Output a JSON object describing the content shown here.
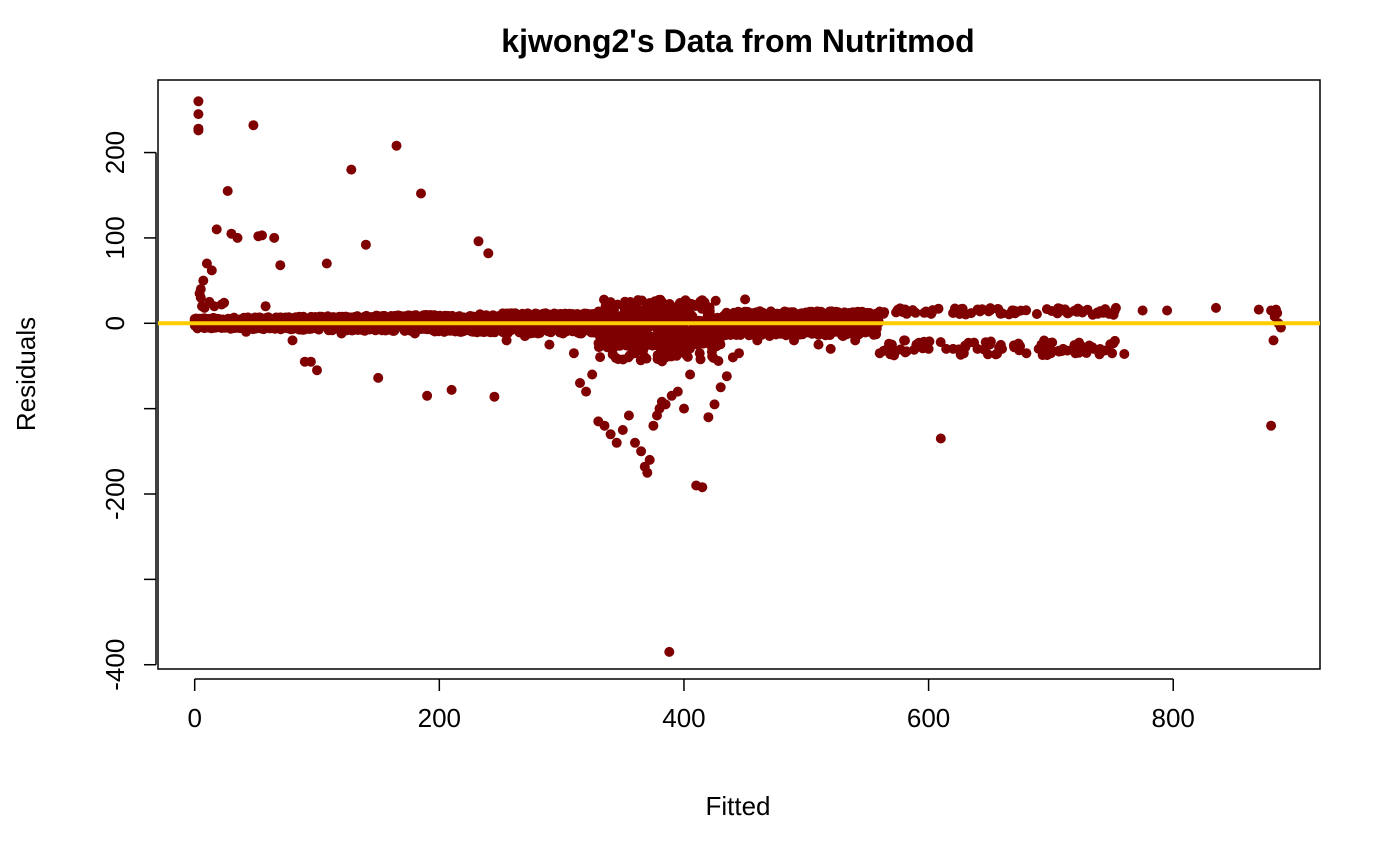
{
  "chart_data": {
    "type": "scatter",
    "title": "kjwong2's Data from Nutritmod",
    "xlabel": "Fitted",
    "ylabel": "Residuals",
    "xlim": [
      -30,
      920
    ],
    "ylim": [
      -405,
      285
    ],
    "xticks": [
      0,
      200,
      400,
      600,
      800
    ],
    "yticks": [
      -400,
      -300,
      -200,
      -100,
      0,
      100,
      200
    ],
    "ytick_labels": [
      "-400",
      "",
      "-200",
      "",
      "0",
      "100",
      "200"
    ],
    "xtick_labels": [
      "0",
      "200",
      "400",
      "600",
      "800"
    ],
    "grid": false,
    "legend": "none",
    "point_color": "#7f0000",
    "reference_line": {
      "y": 0,
      "color": "#ffcc00"
    },
    "series": [
      {
        "values_note_omitted": true,
        "x": [
          3,
          3,
          3,
          3,
          4,
          5,
          5,
          6,
          7,
          8,
          10,
          12,
          14,
          16,
          18,
          22,
          24,
          27,
          30,
          35,
          42,
          48,
          52,
          55,
          58,
          65,
          70,
          80,
          90,
          95,
          100,
          108,
          120,
          128,
          140,
          150,
          165,
          180,
          185,
          190,
          210,
          232,
          240,
          245,
          255,
          270,
          290,
          310,
          315,
          320,
          325,
          330,
          335,
          340,
          345,
          350,
          355,
          360,
          365,
          368,
          370,
          372,
          375,
          378,
          380,
          382,
          385,
          388,
          390,
          395,
          400,
          405,
          410,
          415,
          420,
          425,
          430,
          435,
          440,
          445,
          450,
          460,
          470,
          480,
          490,
          500,
          510,
          520,
          530,
          540,
          550,
          560,
          570,
          580,
          590,
          600,
          610,
          620,
          630,
          640,
          650,
          660,
          670,
          680,
          690,
          700,
          710,
          720,
          735,
          750,
          760,
          775,
          795,
          835,
          870,
          880,
          882,
          884,
          886,
          888,
          880,
          885,
          883
        ],
        "y": [
          260,
          245,
          228,
          226,
          35,
          40,
          30,
          20,
          50,
          18,
          70,
          25,
          62,
          20,
          110,
          22,
          24,
          155,
          105,
          100,
          -10,
          232,
          102,
          103,
          20,
          100,
          68,
          -20,
          -45,
          -45,
          -55,
          70,
          -12,
          180,
          92,
          -64,
          208,
          -12,
          152,
          -85,
          -78,
          96,
          82,
          -86,
          -20,
          -15,
          -25,
          -35,
          -70,
          -80,
          -60,
          -115,
          -120,
          -130,
          -140,
          -125,
          -108,
          -140,
          -150,
          -168,
          -175,
          -160,
          -120,
          -108,
          -100,
          -92,
          -95,
          -385,
          -85,
          -80,
          -100,
          -60,
          -190,
          -192,
          -110,
          -95,
          -75,
          -62,
          -40,
          -35,
          28,
          -20,
          -15,
          -10,
          -20,
          -10,
          -25,
          -30,
          -15,
          -20,
          -10,
          -35,
          -25,
          -20,
          -25,
          -30,
          -135,
          -30,
          -28,
          -30,
          -25,
          -30,
          -28,
          -35,
          -30,
          -35,
          -30,
          -35,
          -30,
          -35,
          -36,
          15,
          15,
          18,
          16,
          -120,
          -20,
          16,
          0,
          -5,
          15,
          12,
          8
        ]
      }
    ]
  }
}
